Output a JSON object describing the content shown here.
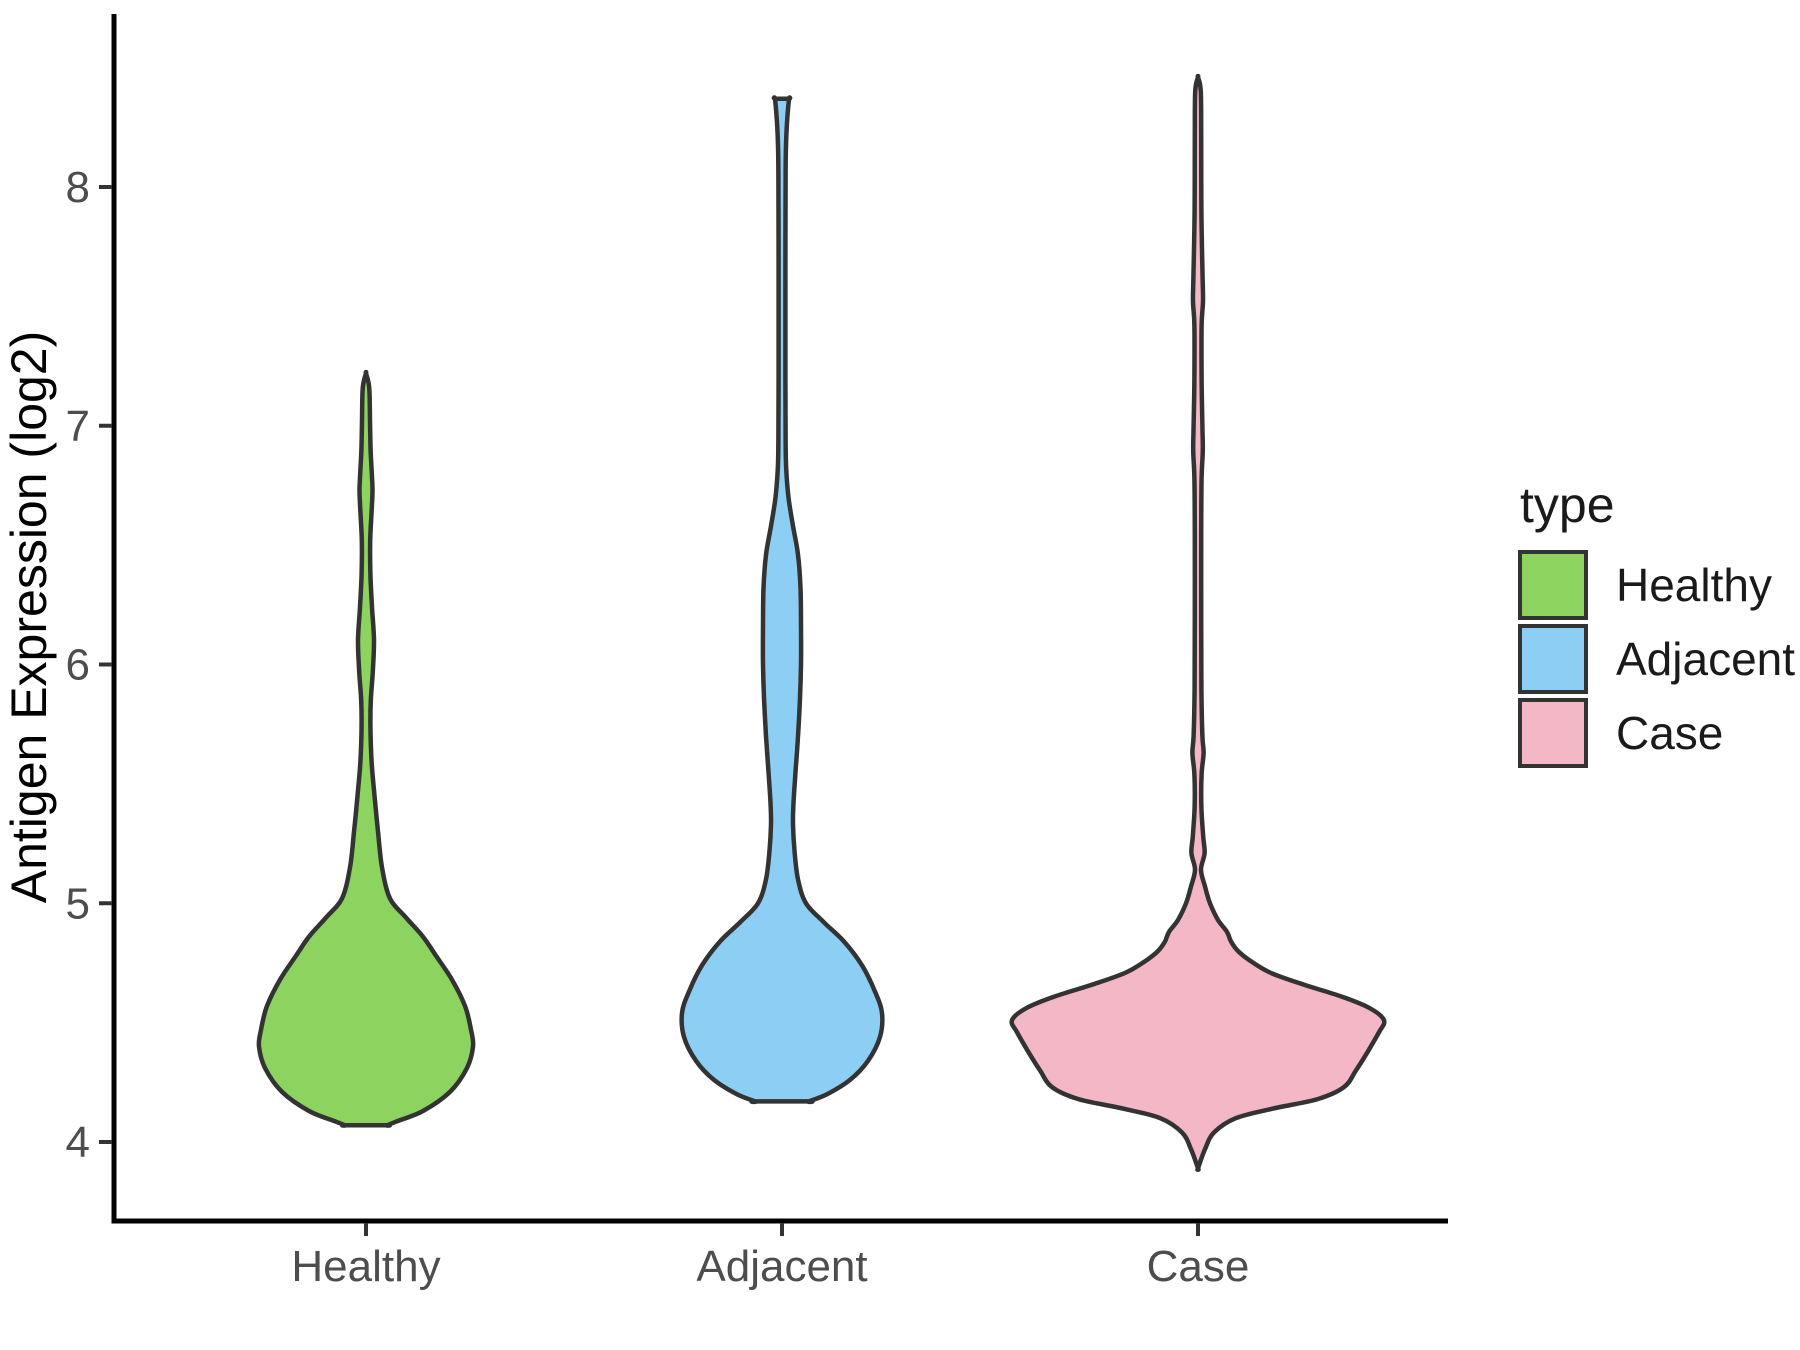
{
  "chart_data": {
    "type": "violin",
    "title": "",
    "xlabel": "",
    "ylabel": "Antigen Expression (log2)",
    "legend_title": "type",
    "legend_position": "right",
    "grid": false,
    "categories": [
      "Healthy",
      "Adjacent",
      "Case"
    ],
    "y_ticks": [
      "4",
      "5",
      "6",
      "7",
      "8"
    ],
    "y_tick_values": [
      4,
      5,
      6,
      7,
      8
    ],
    "y_range_shown": [
      3.7,
      8.6
    ],
    "halfwidth_units": "px-at-render-scale",
    "series": [
      {
        "name": "Healthy",
        "fill_color": "#8DD35F",
        "outline_color": "#333333",
        "observed_range": [
          4.07,
          7.22
        ],
        "flat_top": false,
        "flat_bottom": true,
        "density_profile": [
          [
            7.22,
            0
          ],
          [
            7.16,
            3.2
          ],
          [
            7.02,
            4.0
          ],
          [
            6.9,
            4.6
          ],
          [
            6.8,
            5.8
          ],
          [
            6.73,
            6.5
          ],
          [
            6.64,
            5.6
          ],
          [
            6.52,
            4.2
          ],
          [
            6.38,
            4.4
          ],
          [
            6.24,
            6.0
          ],
          [
            6.1,
            8.0
          ],
          [
            5.97,
            6.8
          ],
          [
            5.85,
            4.8
          ],
          [
            5.72,
            4.5
          ],
          [
            5.58,
            5.8
          ],
          [
            5.45,
            8.5
          ],
          [
            5.3,
            12
          ],
          [
            5.15,
            16
          ],
          [
            5.02,
            24
          ],
          [
            4.94,
            40
          ],
          [
            4.86,
            57
          ],
          [
            4.78,
            70
          ],
          [
            4.68,
            86
          ],
          [
            4.57,
            99
          ],
          [
            4.47,
            105
          ],
          [
            4.4,
            107
          ],
          [
            4.31,
            101
          ],
          [
            4.21,
            84
          ],
          [
            4.13,
            57
          ],
          [
            4.085,
            30
          ],
          [
            4.07,
            21
          ]
        ]
      },
      {
        "name": "Adjacent",
        "fill_color": "#8DCFF4",
        "outline_color": "#333333",
        "observed_range": [
          4.17,
          8.37
        ],
        "flat_top": true,
        "flat_bottom": true,
        "density_profile": [
          [
            8.37,
            7
          ],
          [
            8.3,
            5.5
          ],
          [
            8.2,
            4.2
          ],
          [
            8.05,
            3.6
          ],
          [
            7.6,
            3.4
          ],
          [
            7.2,
            3.4
          ],
          [
            6.95,
            3.6
          ],
          [
            6.82,
            4.2
          ],
          [
            6.7,
            6.5
          ],
          [
            6.58,
            11
          ],
          [
            6.46,
            16
          ],
          [
            6.32,
            18.5
          ],
          [
            6.16,
            19
          ],
          [
            6.0,
            19
          ],
          [
            5.86,
            18
          ],
          [
            5.7,
            16
          ],
          [
            5.55,
            13.5
          ],
          [
            5.42,
            11.5
          ],
          [
            5.33,
            11
          ],
          [
            5.22,
            12.5
          ],
          [
            5.1,
            16
          ],
          [
            5.0,
            24
          ],
          [
            4.92,
            42
          ],
          [
            4.84,
            62
          ],
          [
            4.74,
            80
          ],
          [
            4.63,
            93
          ],
          [
            4.54,
            100
          ],
          [
            4.44,
            98
          ],
          [
            4.34,
            86
          ],
          [
            4.26,
            68
          ],
          [
            4.2,
            45
          ],
          [
            4.17,
            27
          ]
        ]
      },
      {
        "name": "Case",
        "fill_color": "#F4B7C6",
        "outline_color": "#333333",
        "observed_range": [
          3.89,
          8.46
        ],
        "flat_top": false,
        "flat_bottom": false,
        "density_profile": [
          [
            8.46,
            0
          ],
          [
            8.4,
            2.8
          ],
          [
            8.2,
            3.2
          ],
          [
            7.9,
            3.4
          ],
          [
            7.62,
            4.6
          ],
          [
            7.52,
            5.0
          ],
          [
            7.42,
            3.6
          ],
          [
            7.2,
            3.6
          ],
          [
            7.0,
            4.4
          ],
          [
            6.9,
            4.8
          ],
          [
            6.78,
            3.6
          ],
          [
            6.55,
            3.2
          ],
          [
            6.2,
            3.2
          ],
          [
            5.9,
            3.4
          ],
          [
            5.7,
            4.4
          ],
          [
            5.63,
            5.6
          ],
          [
            5.54,
            3.6
          ],
          [
            5.4,
            3.4
          ],
          [
            5.28,
            5.2
          ],
          [
            5.21,
            6.6
          ],
          [
            5.14,
            3.0
          ],
          [
            5.07,
            7
          ],
          [
            5.0,
            12
          ],
          [
            4.93,
            20
          ],
          [
            4.88,
            29
          ],
          [
            4.84,
            33
          ],
          [
            4.8,
            40
          ],
          [
            4.76,
            52
          ],
          [
            4.71,
            72
          ],
          [
            4.66,
            105
          ],
          [
            4.61,
            143
          ],
          [
            4.56,
            172
          ],
          [
            4.51,
            186
          ],
          [
            4.46,
            181
          ],
          [
            4.38,
            170
          ],
          [
            4.3,
            158
          ],
          [
            4.23,
            146
          ],
          [
            4.18,
            120
          ],
          [
            4.14,
            75
          ],
          [
            4.1,
            38
          ],
          [
            4.04,
            16
          ],
          [
            3.97,
            7
          ],
          [
            3.89,
            0
          ]
        ]
      }
    ]
  }
}
